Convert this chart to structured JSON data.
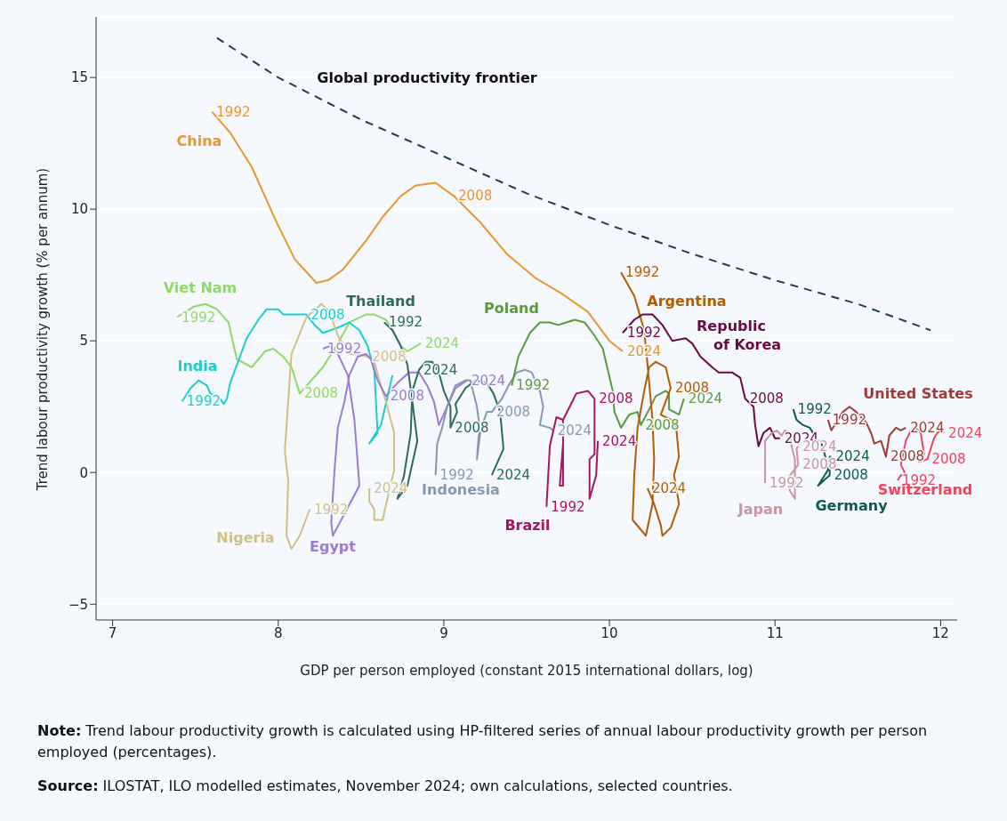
{
  "chart_data": {
    "type": "line",
    "xlabel": "GDP per person employed (constant 2015 international dollars, log)",
    "ylabel": "Trend labour productivity growth (% per annum)",
    "xlim": [
      6.9,
      12.1
    ],
    "xticks": [
      7,
      8,
      9,
      10,
      11,
      12
    ],
    "ylim": [
      -5.6,
      17.3
    ],
    "yticks": [
      {
        "value": -5,
        "label": "−5"
      },
      0,
      5,
      10,
      15
    ],
    "grid": "y",
    "marker": "none",
    "line_style": "solid",
    "series": [
      {
        "name": "Global productivity frontier",
        "color": "#1e3d5c",
        "line_style": "dashed",
        "x": [
          7.63,
          8.0,
          8.5,
          9.0,
          9.5,
          10.0,
          10.5,
          11.0,
          11.5,
          11.94
        ],
        "values": [
          16.5,
          15.0,
          13.4,
          12.0,
          10.6,
          9.4,
          8.3,
          7.3,
          6.4,
          5.4
        ]
      },
      {
        "name": "China",
        "color": "#e8962e",
        "x": [
          7.6,
          7.71,
          7.84,
          7.99,
          8.1,
          8.23,
          8.3,
          8.39,
          8.53,
          8.63,
          8.74,
          8.83,
          8.95,
          9.06,
          9.22,
          9.38,
          9.55,
          9.71,
          9.87,
          10.0,
          10.08
        ],
        "values": [
          13.7,
          12.9,
          11.6,
          9.5,
          8.1,
          7.2,
          7.3,
          7.7,
          8.8,
          9.7,
          10.5,
          10.9,
          11.0,
          10.5,
          9.5,
          8.3,
          7.4,
          6.8,
          6.1,
          5.0,
          4.6
        ]
      },
      {
        "name": "Viet Nam",
        "color": "#8edb64",
        "x": [
          7.39,
          7.49,
          7.56,
          7.63,
          7.7,
          7.75,
          7.84,
          7.92,
          7.97,
          8.03,
          8.08,
          8.13,
          8.27,
          8.36,
          8.43,
          8.53,
          8.58,
          8.65,
          8.7,
          8.74,
          8.78,
          8.86
        ],
        "values": [
          5.9,
          6.3,
          6.4,
          6.2,
          5.7,
          4.3,
          4.0,
          4.6,
          4.7,
          4.4,
          4.0,
          3.0,
          4.0,
          4.9,
          5.7,
          6.0,
          6.0,
          5.8,
          5.3,
          4.8,
          4.6,
          4.9
        ]
      },
      {
        "name": "India",
        "color": "#19cfcf",
        "x": [
          7.42,
          7.47,
          7.52,
          7.57,
          7.59,
          7.65,
          7.67,
          7.69,
          7.71,
          7.81,
          7.88,
          7.93,
          8.0,
          8.03,
          8.17,
          8.22,
          8.27,
          8.36,
          8.43,
          8.49,
          8.54,
          8.58,
          8.59,
          8.6,
          8.55,
          8.62,
          8.69
        ],
        "values": [
          2.7,
          3.2,
          3.5,
          3.3,
          3.0,
          2.8,
          2.6,
          2.8,
          3.4,
          5.1,
          5.8,
          6.2,
          6.2,
          6.0,
          6.0,
          5.6,
          5.3,
          5.5,
          5.7,
          5.4,
          4.8,
          3.9,
          2.7,
          1.5,
          1.1,
          1.8,
          3.7
        ]
      },
      {
        "name": "Nigeria",
        "color": "#d2c184",
        "x": [
          8.19,
          8.13,
          8.08,
          8.05,
          8.06,
          8.04,
          8.06,
          8.08,
          8.17,
          8.26,
          8.31,
          8.36,
          8.43,
          8.49,
          8.54,
          8.58,
          8.62,
          8.65,
          8.7,
          8.7,
          8.67,
          8.63,
          8.58,
          8.58,
          8.55,
          8.55
        ],
        "values": [
          -1.4,
          -2.4,
          -2.9,
          -2.4,
          -0.3,
          0.8,
          2.7,
          4.5,
          5.9,
          6.4,
          6.1,
          5.2,
          4.5,
          4.5,
          4.4,
          4.2,
          3.3,
          2.7,
          1.5,
          0.1,
          -0.7,
          -1.8,
          -1.8,
          -1.4,
          -1.1,
          -0.6
        ]
      },
      {
        "name": "Egypt",
        "color": "#9a7bd6",
        "x": [
          8.27,
          8.31,
          8.36,
          8.42,
          8.46,
          8.49,
          8.33,
          8.32,
          8.34,
          8.36,
          8.4,
          8.43,
          8.48,
          8.53,
          8.56,
          8.6,
          8.65,
          8.72,
          8.79,
          8.85,
          8.9,
          8.94,
          8.97,
          9.02,
          9.07,
          9.14
        ],
        "values": [
          4.7,
          4.8,
          4.5,
          3.7,
          2.0,
          -0.5,
          -2.4,
          -1.9,
          0.1,
          1.7,
          2.7,
          3.7,
          4.4,
          4.5,
          4.3,
          3.5,
          2.9,
          3.4,
          3.8,
          3.8,
          3.3,
          2.7,
          1.8,
          2.5,
          3.2,
          3.5
        ]
      },
      {
        "name": "Thailand",
        "color": "#2d6b5b",
        "x": [
          8.64,
          8.69,
          8.74,
          8.78,
          8.81,
          8.84,
          8.78,
          8.72,
          8.76,
          8.8,
          8.81,
          8.85,
          8.89,
          8.93,
          8.97,
          9.0,
          9.04,
          9.04,
          9.08,
          9.07,
          9.13,
          9.19,
          9.26,
          9.3,
          9.34,
          9.36,
          9.29
        ],
        "values": [
          5.7,
          5.4,
          4.8,
          4.1,
          2.7,
          1.2,
          -0.5,
          -1.0,
          -0.1,
          1.5,
          3.1,
          3.9,
          4.2,
          4.2,
          3.8,
          3.1,
          2.5,
          1.7,
          2.3,
          2.6,
          3.2,
          3.5,
          3.4,
          3.0,
          2.3,
          0.9,
          -0.1
        ]
      },
      {
        "name": "Indonesia",
        "color": "#8799b0",
        "x": [
          8.95,
          8.96,
          8.99,
          9.02,
          9.07,
          9.13,
          9.16,
          9.2,
          9.22,
          9.2,
          9.21,
          9.26,
          9.29,
          9.35,
          9.4,
          9.44,
          9.49,
          9.53,
          9.58,
          9.6,
          9.58,
          9.64,
          9.66
        ],
        "values": [
          -0.1,
          1.1,
          1.7,
          2.5,
          3.3,
          3.5,
          3.5,
          2.5,
          1.5,
          0.5,
          1.4,
          2.3,
          2.3,
          2.8,
          3.4,
          3.8,
          3.9,
          3.8,
          3.1,
          2.5,
          1.8,
          1.7,
          1.6
        ]
      },
      {
        "name": "Poland",
        "color": "#5a9a3c",
        "x": [
          9.41,
          9.45,
          9.52,
          9.58,
          9.64,
          9.69,
          9.74,
          9.79,
          9.85,
          9.91,
          9.96,
          9.99,
          10.02,
          10.03,
          10.07,
          10.12,
          10.17,
          10.19,
          10.24,
          10.28,
          10.34,
          10.36,
          10.36,
          10.42,
          10.45
        ],
        "values": [
          3.3,
          4.4,
          5.3,
          5.7,
          5.7,
          5.6,
          5.7,
          5.8,
          5.7,
          5.2,
          4.7,
          3.9,
          3.1,
          2.3,
          1.7,
          2.2,
          2.3,
          1.8,
          2.4,
          2.9,
          3.1,
          3.0,
          2.4,
          2.2,
          2.8
        ]
      },
      {
        "name": "Brazil",
        "color": "#a81560",
        "x": [
          9.62,
          9.64,
          9.68,
          9.72,
          9.72,
          9.7,
          9.72,
          9.72,
          9.72,
          9.76,
          9.8,
          9.87,
          9.91,
          9.91,
          9.91,
          9.88,
          9.88,
          9.92,
          9.93
        ],
        "values": [
          -1.3,
          1.0,
          2.1,
          2.0,
          1.1,
          -0.5,
          -0.5,
          0.6,
          2.0,
          2.5,
          3.0,
          3.1,
          2.8,
          1.5,
          0.7,
          0.5,
          -1.0,
          -0.1,
          1.2
        ]
      },
      {
        "name": "Argentina",
        "color": "#b35c00",
        "x": [
          10.07,
          10.15,
          10.21,
          10.23,
          10.26,
          10.27,
          10.26,
          10.22,
          10.14,
          10.15,
          10.17,
          10.21,
          10.24,
          10.28,
          10.34,
          10.37,
          10.31,
          10.4,
          10.42,
          10.39,
          10.42,
          10.37,
          10.32,
          10.31,
          10.27,
          10.23
        ],
        "values": [
          7.6,
          6.7,
          5.4,
          4.1,
          2.0,
          0.5,
          -1.2,
          -2.4,
          -1.8,
          -0.1,
          1.7,
          3.1,
          4.0,
          4.2,
          4.0,
          3.2,
          2.2,
          1.9,
          0.6,
          -0.1,
          -1.2,
          -2.1,
          -2.4,
          -2.0,
          -1.2,
          -0.6
        ]
      },
      {
        "name": "Republic of Korea",
        "color": "#6b0a40",
        "x": [
          10.08,
          10.15,
          10.2,
          10.26,
          10.32,
          10.38,
          10.46,
          10.5,
          10.55,
          10.62,
          10.66,
          10.74,
          10.79,
          10.82,
          10.87,
          10.88,
          10.9,
          10.93,
          10.97,
          11.0,
          11.03
        ],
        "values": [
          5.3,
          5.8,
          6.0,
          6.0,
          5.6,
          5.0,
          5.1,
          4.9,
          4.4,
          4.0,
          3.8,
          3.8,
          3.6,
          2.8,
          2.5,
          1.8,
          1.0,
          1.5,
          1.7,
          1.3,
          1.3
        ]
      },
      {
        "name": "Japan",
        "color": "#c995a3",
        "x": [
          10.94,
          10.94,
          10.98,
          11.01,
          11.04,
          11.06,
          11.09,
          11.1,
          11.12,
          11.12,
          11.09,
          11.08,
          11.14,
          11.13,
          11.14
        ],
        "values": [
          -0.4,
          1.2,
          1.5,
          1.6,
          1.4,
          1.6,
          1.5,
          1.0,
          0.5,
          -1.0,
          -0.7,
          -0.2,
          0.3,
          0.9,
          1.0
        ]
      },
      {
        "name": "Germany",
        "color": "#0e5a52",
        "x": [
          11.11,
          11.13,
          11.17,
          11.21,
          11.25,
          11.28,
          11.3,
          11.32,
          11.26,
          11.33,
          11.33,
          11.34
        ],
        "values": [
          2.4,
          2.0,
          1.8,
          1.7,
          1.3,
          1.1,
          0.7,
          0.1,
          -0.5,
          -0.1,
          0.6,
          0.6
        ]
      },
      {
        "name": "United States",
        "color": "#9e3a3a",
        "x": [
          11.32,
          11.34,
          11.38,
          11.41,
          11.45,
          11.49,
          11.52,
          11.55,
          11.58,
          11.6,
          11.64,
          11.67,
          11.69,
          11.73,
          11.76,
          11.79
        ],
        "values": [
          2.0,
          1.6,
          2.0,
          2.3,
          2.5,
          2.3,
          2.1,
          1.9,
          1.5,
          1.1,
          1.2,
          0.6,
          1.4,
          1.7,
          1.6,
          1.7
        ]
      },
      {
        "name": "Switzerland",
        "color": "#f2435a",
        "x": [
          11.74,
          11.76,
          11.79,
          11.76,
          11.79,
          11.82,
          11.85,
          11.88,
          11.9,
          11.87,
          11.92,
          11.95,
          11.96,
          11.98,
          12.0,
          12.02
        ],
        "values": [
          -0.3,
          -0.1,
          -0.1,
          0.3,
          1.2,
          1.6,
          1.7,
          1.5,
          0.7,
          0.4,
          0.5,
          1.1,
          1.3,
          1.5,
          1.6,
          1.5
        ]
      }
    ],
    "annotations": [
      "Note: Trend labour productivity growth is calculated using HP-filtered series of annual labour productivity growth per person employed (percentages).",
      "Source: ILOSTAT, ILO modelled estimates, November 2024; own calculations, selected countries.",
      {
        "text": "1992",
        "x": 7.6,
        "y": 13.7
      },
      {
        "text": "2008",
        "x": 9.06,
        "y": 10.5
      },
      {
        "text": "2024",
        "x": 10.08,
        "y": 4.6
      },
      {
        "text": "1992",
        "x": 7.39,
        "y": 5.9
      },
      {
        "text": "2008",
        "x": 8.13,
        "y": 3.0
      },
      {
        "text": "2024",
        "x": 8.86,
        "y": 4.9
      },
      {
        "text": "1992",
        "x": 7.42,
        "y": 2.7
      },
      {
        "text": "2008",
        "x": 8.17,
        "y": 6.0
      },
      {
        "text": "1992",
        "x": 8.19,
        "y": -1.4
      },
      {
        "text": "2008",
        "x": 8.54,
        "y": 4.4
      },
      {
        "text": "2024",
        "x": 8.55,
        "y": -0.6
      },
      {
        "text": "1992",
        "x": 8.27,
        "y": 4.7
      },
      {
        "text": "2008",
        "x": 8.65,
        "y": 2.9
      },
      {
        "text": "2024",
        "x": 9.14,
        "y": 3.5
      },
      {
        "text": "1992",
        "x": 8.64,
        "y": 5.7
      },
      {
        "text": "2024",
        "x": 8.85,
        "y": 3.9
      },
      {
        "text": "2008",
        "x": 9.04,
        "y": 1.7
      },
      {
        "text": "2024",
        "x": 9.29,
        "y": -0.1
      },
      {
        "text": "1992",
        "x": 8.95,
        "y": -0.1
      },
      {
        "text": "2008",
        "x": 9.29,
        "y": 2.3
      },
      {
        "text": "2024",
        "x": 9.66,
        "y": 1.6
      },
      {
        "text": "1992",
        "x": 9.41,
        "y": 3.3
      },
      {
        "text": "2008",
        "x": 10.19,
        "y": 1.8
      },
      {
        "text": "2024",
        "x": 10.45,
        "y": 2.8
      },
      {
        "text": "1992",
        "x": 9.62,
        "y": -1.3
      },
      {
        "text": "2008",
        "x": 9.91,
        "y": 2.8
      },
      {
        "text": "2024",
        "x": 9.93,
        "y": 1.2
      },
      {
        "text": "1992",
        "x": 10.07,
        "y": 7.6
      },
      {
        "text": "2008",
        "x": 10.37,
        "y": 3.2
      },
      {
        "text": "2024",
        "x": 10.23,
        "y": -0.6
      },
      {
        "text": "1992",
        "x": 10.08,
        "y": 5.3
      },
      {
        "text": "2008",
        "x": 10.82,
        "y": 2.8
      },
      {
        "text": "2024",
        "x": 11.03,
        "y": 1.3
      },
      {
        "text": "1992",
        "x": 10.94,
        "y": -0.4
      },
      {
        "text": "2008",
        "x": 11.14,
        "y": 0.3
      },
      {
        "text": "2024",
        "x": 11.14,
        "y": 1.0
      },
      {
        "text": "1992",
        "x": 11.11,
        "y": 2.4
      },
      {
        "text": "2008",
        "x": 11.33,
        "y": -0.1
      },
      {
        "text": "2024",
        "x": 11.34,
        "y": 0.6
      },
      {
        "text": "1992",
        "x": 11.32,
        "y": 2.0
      },
      {
        "text": "2008",
        "x": 11.67,
        "y": 0.6
      },
      {
        "text": "2024",
        "x": 11.79,
        "y": 1.7
      },
      {
        "text": "1992",
        "x": 11.74,
        "y": -0.3
      },
      {
        "text": "2008",
        "x": 11.92,
        "y": 0.5
      },
      {
        "text": "2024",
        "x": 12.02,
        "y": 1.5
      }
    ]
  }
}
